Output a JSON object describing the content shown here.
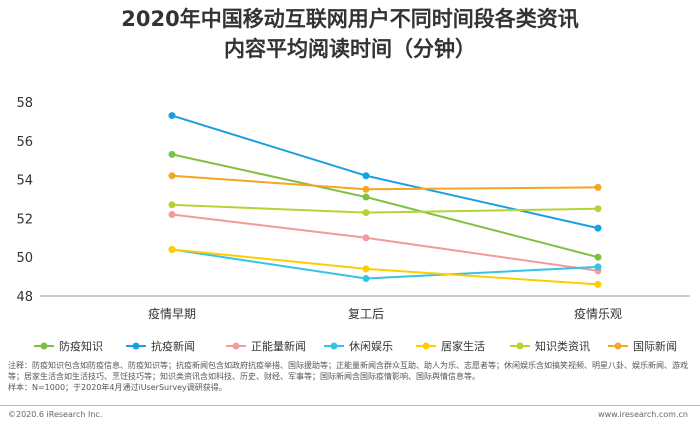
{
  "title_line1": "2020年中国移动互联网用户不同时间段各类资讯",
  "title_line2": "内容平均阅读时间（分钟）",
  "chart_data": {
    "type": "line",
    "categories": [
      "疫情早期",
      "复工后",
      "疫情乐观"
    ],
    "ylim": [
      48,
      58
    ],
    "yticks": [
      48,
      50,
      52,
      54,
      56,
      58
    ],
    "legend_position": "bottom",
    "series": [
      {
        "name": "防疫知识",
        "color": "#7dc142",
        "values": [
          55.3,
          53.1,
          50.0
        ]
      },
      {
        "name": "抗疫新闻",
        "color": "#1aa0e0",
        "values": [
          57.3,
          54.2,
          51.5
        ]
      },
      {
        "name": "正能量新闻",
        "color": "#f19b9b",
        "values": [
          52.2,
          51.0,
          49.3
        ]
      },
      {
        "name": "休闲娱乐",
        "color": "#33c4e8",
        "values": [
          50.4,
          48.9,
          49.5
        ]
      },
      {
        "name": "居家生活",
        "color": "#ffcc00",
        "values": [
          50.4,
          49.4,
          48.6
        ]
      },
      {
        "name": "知识类资讯",
        "color": "#b5d334",
        "values": [
          52.7,
          52.3,
          52.5
        ]
      },
      {
        "name": "国际新闻",
        "color": "#f5a623",
        "values": [
          54.2,
          53.5,
          53.6
        ]
      }
    ]
  },
  "footnote_line1": "注释：防疫知识包含如防疫信息、防疫知识等；抗疫新闻包含如政府抗疫举措、国际援助等；正能量新闻含群众互助、助人为乐、志愿者等；休闲娱乐含如搞笑视频、明星八卦、娱乐新闻、游戏等；居家生活含如生活技巧、烹饪技巧等；知识类资讯含如科技、历史、财经、军事等；国际新闻含国际疫情影响、国际舆情信息等。",
  "footnote_line2": "样本：N=1000；于2020年4月通过iUserSurvey调研获得。",
  "footer_left": "©2020.6 iResearch Inc.",
  "footer_right": "www.iresearch.com.cn"
}
